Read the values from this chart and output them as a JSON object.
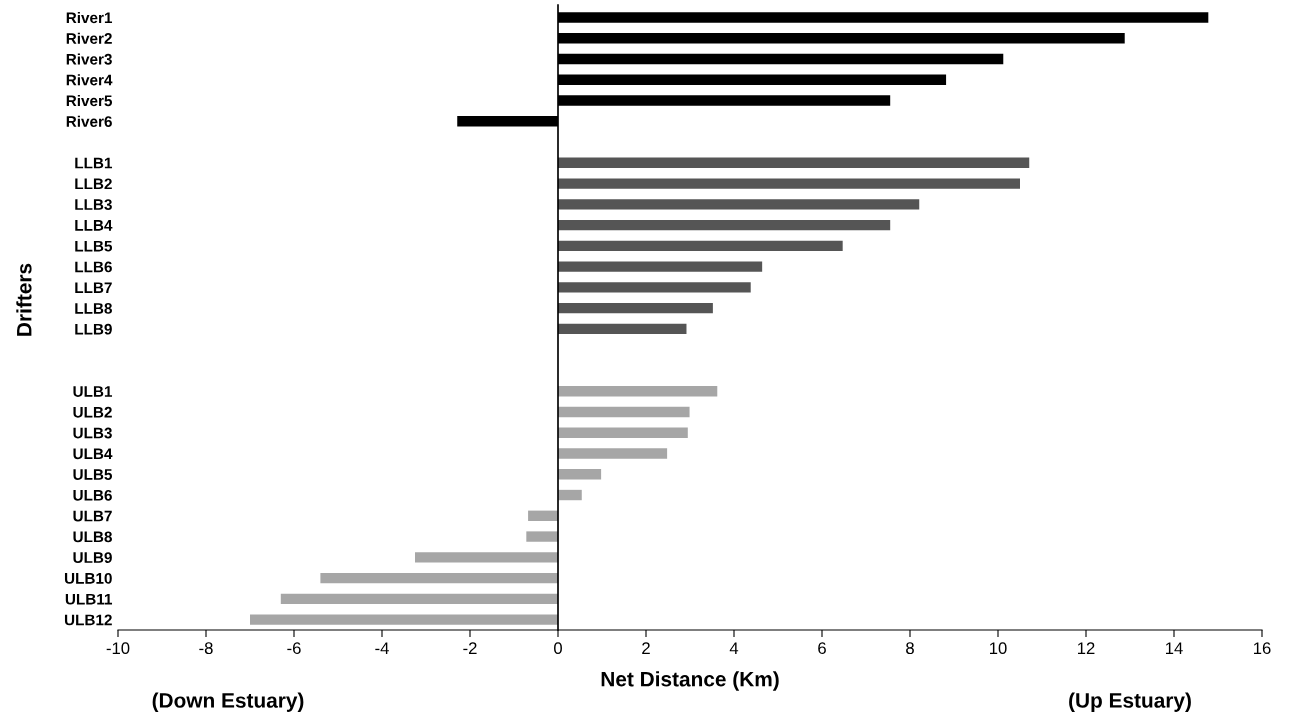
{
  "chart_data": {
    "type": "bar",
    "orientation": "horizontal",
    "categories": [
      "River1",
      "River2",
      "River3",
      "River4",
      "River5",
      "River6",
      null,
      "LLB1",
      "LLB2",
      "LLB3",
      "LLB4",
      "LLB5",
      "LLB6",
      "LLB7",
      "LLB8",
      "LLB9",
      null,
      null,
      "ULB1",
      "ULB2",
      "ULB3",
      "ULB4",
      "ULB5",
      "ULB6",
      "ULB7",
      "ULB8",
      "ULB9",
      "ULB10",
      "ULB11",
      "ULB12"
    ],
    "values": [
      14.78,
      12.88,
      10.12,
      8.82,
      7.55,
      -2.29,
      null,
      10.71,
      10.5,
      8.21,
      7.55,
      6.47,
      4.64,
      4.38,
      3.52,
      2.92,
      null,
      null,
      3.62,
      2.99,
      2.95,
      2.48,
      0.98,
      0.54,
      -0.68,
      -0.72,
      -3.25,
      -5.4,
      -6.3,
      -7.0
    ],
    "colors": [
      "#000000",
      "#000000",
      "#000000",
      "#000000",
      "#000000",
      "#000000",
      null,
      "#555555",
      "#555555",
      "#555555",
      "#555555",
      "#555555",
      "#555555",
      "#555555",
      "#555555",
      "#555555",
      null,
      null,
      "#a6a6a6",
      "#a6a6a6",
      "#a6a6a6",
      "#a6a6a6",
      "#a6a6a6",
      "#a6a6a6",
      "#a6a6a6",
      "#a6a6a6",
      "#a6a6a6",
      "#a6a6a6",
      "#a6a6a6",
      "#a6a6a6"
    ],
    "xlim": [
      -10,
      16
    ],
    "xticks": [
      -10,
      -8,
      -6,
      -4,
      -2,
      0,
      2,
      4,
      6,
      8,
      10,
      12,
      14,
      16
    ],
    "xlabel": "Net Distance (Km)",
    "ylabel": "Drifters",
    "annotations": [
      "(Down Estuary)",
      "(Up Estuary)"
    ],
    "legend": false
  }
}
